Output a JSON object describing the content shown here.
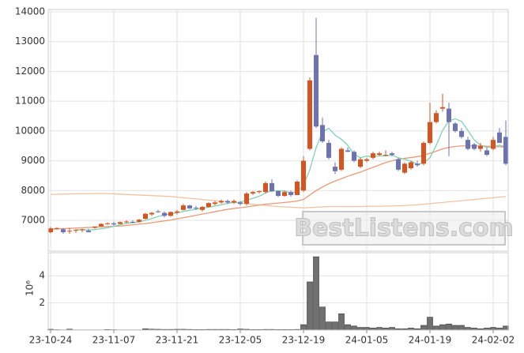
{
  "chart_data": [
    {
      "type": "candlestick",
      "up_color": "#d9531e",
      "down_color": "#6c72b4",
      "open": [
        6600,
        6730,
        6700,
        6650,
        6650,
        6680,
        6650,
        6750,
        6800,
        6880,
        6900,
        6880,
        6940,
        6950,
        6950,
        7050,
        7200,
        7300,
        7250,
        7150,
        7260,
        7350,
        7500,
        7420,
        7350,
        7450,
        7550,
        7600,
        7650,
        7600,
        7600,
        7550,
        7900,
        7950,
        7950,
        8250,
        7980,
        7820,
        7950,
        7850,
        8000,
        9400,
        12550,
        10200,
        9600,
        8800,
        8700,
        9350,
        9300,
        8800,
        9000,
        9100,
        9200,
        9200,
        9250,
        9050,
        8600,
        8750,
        8900,
        8900,
        9600,
        10300,
        10750,
        10750,
        10250,
        10000,
        9700,
        9550,
        9400,
        9350,
        9400,
        9950,
        9800
      ],
      "high": [
        6780,
        6770,
        6730,
        6750,
        6700,
        6720,
        6720,
        6800,
        6900,
        6930,
        6950,
        6960,
        7000,
        7000,
        7050,
        7250,
        7280,
        7350,
        7300,
        7300,
        7350,
        7550,
        7520,
        7480,
        7480,
        7600,
        7650,
        7700,
        7700,
        7700,
        7650,
        7950,
        7980,
        8000,
        8300,
        8380,
        8000,
        8000,
        8000,
        8350,
        9150,
        11800,
        13800,
        10450,
        9700,
        8950,
        9450,
        9450,
        9350,
        9100,
        9100,
        9300,
        9300,
        9350,
        9300,
        9100,
        8950,
        9000,
        9000,
        9650,
        10950,
        10700,
        11250,
        10950,
        10300,
        10100,
        9800,
        9600,
        9600,
        9450,
        9800,
        10100,
        10350
      ],
      "low": [
        6560,
        6700,
        6550,
        6550,
        6580,
        6600,
        6600,
        6720,
        6780,
        6850,
        6820,
        6870,
        6900,
        6900,
        6920,
        7030,
        7150,
        7250,
        7100,
        7120,
        7200,
        7330,
        7380,
        7350,
        7300,
        7420,
        7500,
        7550,
        7550,
        7550,
        7500,
        7500,
        7850,
        7900,
        7900,
        7950,
        7780,
        7800,
        7800,
        7850,
        7950,
        9350,
        10100,
        9600,
        9050,
        8550,
        8650,
        9300,
        8950,
        8750,
        8950,
        9050,
        9150,
        9150,
        9150,
        8650,
        8550,
        8700,
        8800,
        8850,
        9550,
        10250,
        10650,
        9150,
        9950,
        9750,
        9350,
        9350,
        9300,
        9150,
        9350,
        9600,
        8850
      ],
      "close": [
        6730,
        6740,
        6600,
        6650,
        6680,
        6700,
        6600,
        6790,
        6880,
        6900,
        6860,
        6940,
        6960,
        6920,
        7020,
        7220,
        7250,
        7280,
        7150,
        7280,
        7300,
        7500,
        7400,
        7400,
        7450,
        7580,
        7600,
        7650,
        7600,
        7650,
        7550,
        7900,
        7950,
        7980,
        8250,
        7980,
        7820,
        7950,
        7850,
        8300,
        9000,
        11700,
        10150,
        9650,
        9100,
        8650,
        9400,
        9300,
        9000,
        9050,
        9050,
        9250,
        9250,
        9200,
        9200,
        8700,
        8900,
        8950,
        8850,
        9600,
        10300,
        10600,
        10800,
        10300,
        10000,
        9800,
        9400,
        9400,
        9500,
        9200,
        9700,
        9600,
        8900
      ],
      "series": [
        {
          "color": "#f2c2a2",
          "values": [
            7870,
            7875,
            7880,
            7885,
            7890,
            7890,
            7895,
            7895,
            7900,
            7895,
            7890,
            7880,
            7870,
            7860,
            7850,
            7840,
            7830,
            7820,
            7810,
            7800,
            7780,
            7760,
            7740,
            7720,
            7700,
            7680,
            7660,
            7640,
            7620,
            7600,
            7580,
            7560,
            7540,
            7520,
            7500,
            7480,
            7460,
            7450,
            7440,
            7430,
            7420,
            7430,
            7440,
            7450,
            7460,
            7460,
            7460,
            7460,
            7460,
            7460,
            7470,
            7470,
            7470,
            7480,
            7480,
            7490,
            7500,
            7510,
            7520,
            7540,
            7560,
            7580,
            7600,
            7620,
            7640,
            7660,
            7680,
            7700,
            7720,
            7740,
            7760,
            7780,
            7800
          ]
        },
        {
          "color": "#e99a78",
          "values": [
            6700,
            6710,
            6720,
            6730,
            6740,
            6750,
            6760,
            6770,
            6780,
            6790,
            6800,
            6810,
            6830,
            6850,
            6870,
            6890,
            6920,
            6950,
            6980,
            7010,
            7050,
            7090,
            7130,
            7170,
            7210,
            7250,
            7290,
            7330,
            7370,
            7400,
            7420,
            7450,
            7480,
            7510,
            7540,
            7560,
            7580,
            7600,
            7620,
            7650,
            7700,
            7850,
            8000,
            8120,
            8230,
            8320,
            8400,
            8480,
            8550,
            8620,
            8700,
            8780,
            8860,
            8940,
            9000,
            9050,
            9080,
            9110,
            9140,
            9180,
            9250,
            9320,
            9400,
            9450,
            9480,
            9500,
            9500,
            9500,
            9500,
            9490,
            9480,
            9470,
            9460
          ]
        },
        {
          "color": "#7fd3b4",
          "values": [
            null,
            null,
            null,
            null,
            6680,
            6680,
            6670,
            6690,
            6720,
            6750,
            6800,
            6850,
            6900,
            6920,
            6950,
            7000,
            7060,
            7130,
            7180,
            7220,
            7250,
            7300,
            7340,
            7370,
            7410,
            7440,
            7480,
            7520,
            7570,
            7600,
            7610,
            7680,
            7740,
            7810,
            7920,
            7990,
            7990,
            7990,
            7920,
            7960,
            8180,
            8700,
            9440,
            9970,
            10090,
            9860,
            9720,
            9520,
            9220,
            9100,
            9160,
            9130,
            9170,
            9160,
            9190,
            9100,
            9050,
            8990,
            8880,
            8930,
            9100,
            9520,
            10020,
            10340,
            10410,
            10320,
            10020,
            9700,
            9520,
            9450,
            9470,
            9520,
            9470
          ]
        }
      ],
      "ylim": [
        5966,
        14080
      ],
      "yticks": [
        7000,
        8000,
        9000,
        10000,
        11000,
        12000,
        13000,
        14000
      ],
      "grid": true,
      "watermark": "BestListens.com"
    },
    {
      "type": "bar",
      "categories": [
        "23-10-24",
        null,
        null,
        null,
        null,
        null,
        null,
        null,
        null,
        null,
        "23-11-07",
        null,
        null,
        null,
        null,
        null,
        null,
        null,
        null,
        null,
        "23-11-21",
        null,
        null,
        null,
        null,
        null,
        null,
        null,
        null,
        null,
        "23-12-05",
        null,
        null,
        null,
        null,
        null,
        null,
        null,
        null,
        null,
        "23-12-19",
        null,
        null,
        null,
        null,
        null,
        null,
        null,
        null,
        null,
        "24-01-05",
        null,
        null,
        null,
        null,
        null,
        null,
        null,
        null,
        null,
        "24-01-19",
        null,
        null,
        null,
        null,
        null,
        null,
        null,
        null,
        null,
        "24-02-02",
        null,
        null
      ],
      "values": [
        0.06,
        0.03,
        0.02,
        0.07,
        0.02,
        0.02,
        0.02,
        0.02,
        0.02,
        0.04,
        0.03,
        0.02,
        0.02,
        0.02,
        0.02,
        0.1,
        0.07,
        0.06,
        0.05,
        0.05,
        0.06,
        0.06,
        0.05,
        0.04,
        0.04,
        0.05,
        0.05,
        0.05,
        0.05,
        0.04,
        0.08,
        0.06,
        0.04,
        0.04,
        0.05,
        0.05,
        0.04,
        0.04,
        0.04,
        0.05,
        0.4,
        3.55,
        5.4,
        1.7,
        0.6,
        0.6,
        1.2,
        0.4,
        0.3,
        0.2,
        0.2,
        0.15,
        0.2,
        0.15,
        0.2,
        0.1,
        0.1,
        0.15,
        0.1,
        0.35,
        0.95,
        0.3,
        0.4,
        0.45,
        0.35,
        0.35,
        0.2,
        0.15,
        0.1,
        0.15,
        0.2,
        0.15,
        0.3
      ],
      "color": "#707070",
      "ylim": [
        0,
        5.7
      ],
      "yticks": [
        2,
        4
      ],
      "ylabel": "10⁶",
      "grid": true
    }
  ]
}
